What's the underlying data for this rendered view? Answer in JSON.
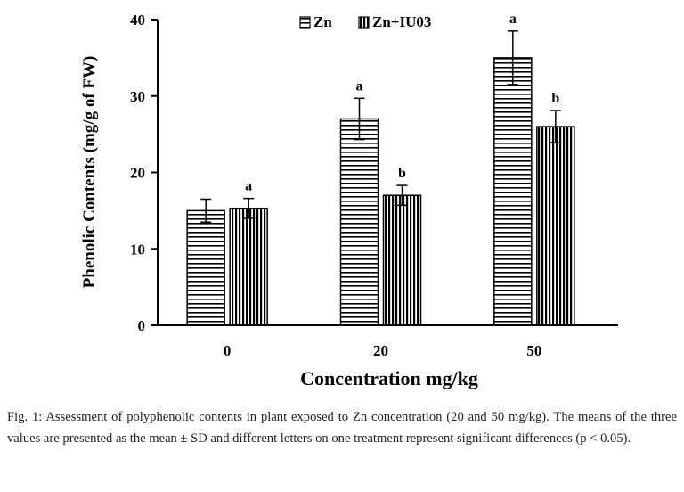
{
  "chart_data": {
    "type": "bar",
    "xlabel": "Concentration mg/kg",
    "ylabel": "Phenolic Contents (mg/g of FW)",
    "categories": [
      "0",
      "20",
      "50"
    ],
    "ylim": [
      0,
      40
    ],
    "yticks": [
      0,
      10,
      20,
      30,
      40
    ],
    "grid": false,
    "legend_position": "top",
    "series": [
      {
        "name": "Zn",
        "pattern": "horizontal-stripes",
        "values": [
          15,
          27,
          35
        ],
        "errors": [
          1.5,
          2.7,
          3.5
        ],
        "letters": [
          "",
          "a",
          "a"
        ]
      },
      {
        "name": "Zn+IU03",
        "pattern": "vertical-stripes",
        "values": [
          15.3,
          17,
          26
        ],
        "errors": [
          1.3,
          1.3,
          2.1
        ],
        "letters": [
          "a",
          "b",
          "b"
        ]
      }
    ]
  },
  "caption": "Fig. 1:  Assessment of polyphenolic contents in plant exposed to Zn concentration (20 and 50 mg/kg). The means of the three values are presented as the mean ± SD and different letters on one treatment represent significant differences (p < 0.05)."
}
